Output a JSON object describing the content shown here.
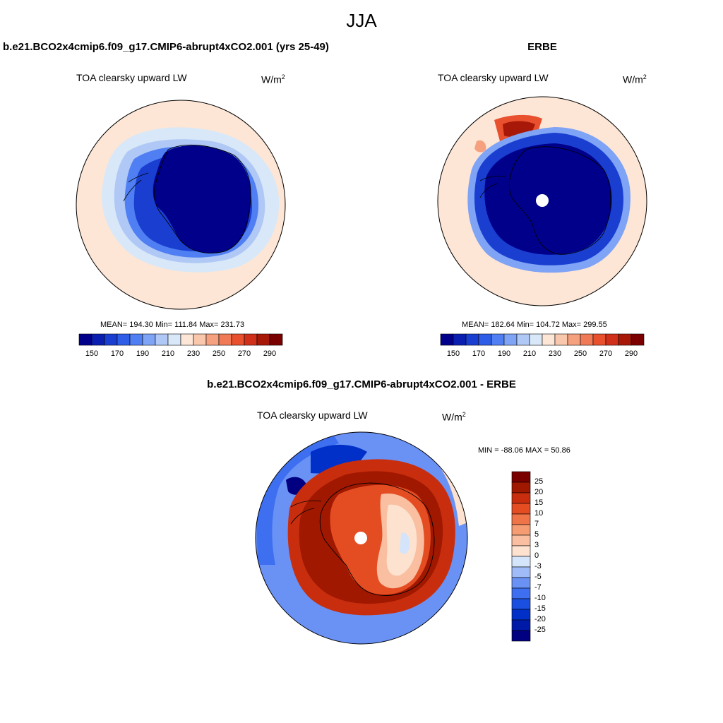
{
  "title": "JJA",
  "colors": {
    "abs_scale": [
      "#00008b",
      "#0a1fb0",
      "#1a3fd0",
      "#2e5ee8",
      "#4f7ff2",
      "#7fa3f5",
      "#b0c8f5",
      "#d8e8f8",
      "#fde6d6",
      "#f9c7ab",
      "#f5a07e",
      "#f07a55",
      "#e8502e",
      "#d0301a",
      "#a81808",
      "#7a0000"
    ],
    "diff_scale": [
      "#000080",
      "#001aa8",
      "#0030c8",
      "#1a4fe0",
      "#3d6ff0",
      "#6a92f5",
      "#a0bcf8",
      "#d4e4fb",
      "#fde2d0",
      "#f9bfa0",
      "#f59c72",
      "#ef7448",
      "#e44c22",
      "#c82e0e",
      "#a01800",
      "#7a0000"
    ]
  },
  "panels": [
    {
      "heading": "b.e21.BCO2x4cmip6.f09_g17.CMIP6-abrupt4xCO2.001 (yrs 25-49)",
      "subtitle": "TOA clearsky upward LW",
      "units_base": "W/m",
      "units_sup": "2",
      "stats_text": "MEAN= 194.30  Min= 111.84  Max= 231.73",
      "colorbar_ticks": [
        "150",
        "170",
        "190",
        "210",
        "230",
        "250",
        "270",
        "290"
      ]
    },
    {
      "heading": "ERBE",
      "subtitle": "TOA clearsky upward LW",
      "units_base": "W/m",
      "units_sup": "2",
      "stats_text": "MEAN= 182.64  Min= 104.72  Max= 299.55",
      "colorbar_ticks": [
        "150",
        "170",
        "190",
        "210",
        "230",
        "250",
        "270",
        "290"
      ]
    },
    {
      "heading": "b.e21.BCO2x4cmip6.f09_g17.CMIP6-abrupt4xCO2.001 - ERBE",
      "subtitle": "TOA clearsky upward LW",
      "units_base": "W/m",
      "units_sup": "2",
      "stats_text": "MIN = -88.06 MAX =  50.86",
      "colorbar_ticks": [
        "25",
        "20",
        "15",
        "10",
        "7",
        "5",
        "3",
        "0",
        "-3",
        "-5",
        "-7",
        "-10",
        "-15",
        "-20",
        "-25"
      ]
    }
  ]
}
